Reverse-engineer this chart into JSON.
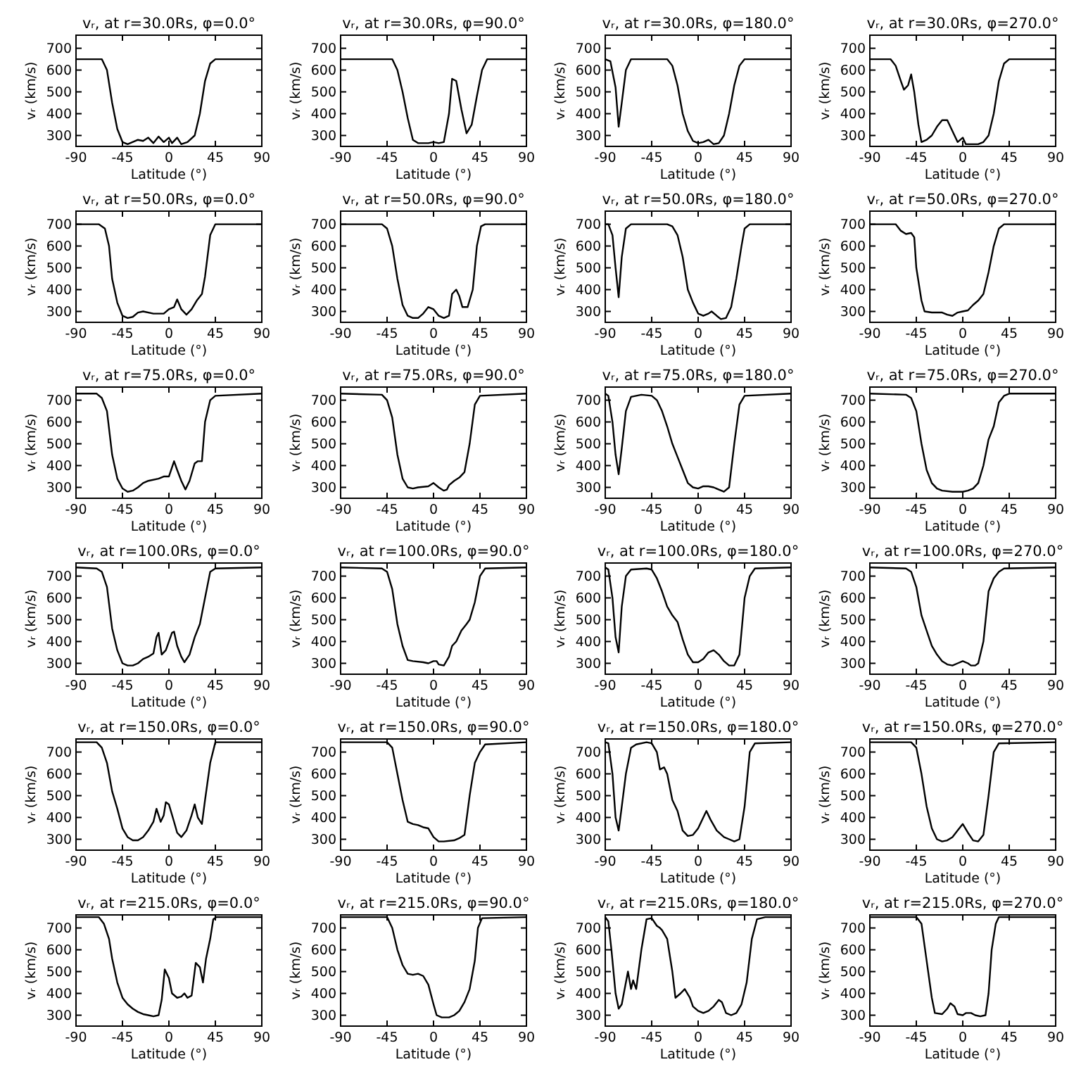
{
  "chart_data": [
    {
      "type": "line",
      "title": "vᵣ, at r=30.0Rs, φ=0.0°",
      "xlabel": "Latitude (°)",
      "ylabel": "vᵣ (km/s)",
      "xlim": [
        -90,
        90
      ],
      "xticks": [
        -90,
        -45,
        0,
        45,
        90
      ],
      "ylim": [
        250,
        760
      ],
      "yticks": [
        300,
        400,
        500,
        600,
        700
      ],
      "color": "#000000",
      "x": [
        -90,
        -65,
        -60,
        -55,
        -50,
        -45,
        -40,
        -30,
        -25,
        -20,
        -15,
        -10,
        -5,
        0,
        3,
        8,
        12,
        18,
        25,
        30,
        35,
        40,
        45,
        90
      ],
      "values": [
        650,
        650,
        600,
        450,
        330,
        270,
        260,
        280,
        275,
        290,
        265,
        295,
        270,
        290,
        265,
        290,
        260,
        270,
        300,
        400,
        550,
        630,
        650,
        650
      ]
    },
    {
      "type": "line",
      "title": "vᵣ, at r=30.0Rs, φ=90.0°",
      "xlabel": "Latitude (°)",
      "ylabel": "vᵣ (km/s)",
      "xlim": [
        -90,
        90
      ],
      "xticks": [
        -90,
        -45,
        0,
        45,
        90
      ],
      "ylim": [
        250,
        760
      ],
      "yticks": [
        300,
        400,
        500,
        600,
        700
      ],
      "color": "#000000",
      "x": [
        -90,
        -40,
        -35,
        -30,
        -25,
        -20,
        -15,
        -5,
        0,
        5,
        10,
        15,
        18,
        22,
        27,
        32,
        37,
        42,
        47,
        52,
        90
      ],
      "values": [
        650,
        650,
        600,
        500,
        380,
        280,
        265,
        265,
        270,
        265,
        270,
        400,
        560,
        550,
        420,
        310,
        350,
        480,
        600,
        650,
        650
      ]
    },
    {
      "type": "line",
      "title": "vᵣ, at r=30.0Rs, φ=180.0°",
      "xlabel": "Latitude (°)",
      "ylabel": "vᵣ (km/s)",
      "xlim": [
        -90,
        90
      ],
      "xticks": [
        -90,
        -45,
        0,
        45,
        90
      ],
      "ylim": [
        250,
        760
      ],
      "yticks": [
        300,
        400,
        500,
        600,
        700
      ],
      "color": "#000000",
      "x": [
        -90,
        -85,
        -80,
        -77,
        -74,
        -70,
        -65,
        -30,
        -25,
        -20,
        -15,
        -10,
        -5,
        0,
        5,
        10,
        15,
        20,
        25,
        30,
        35,
        40,
        45,
        90
      ],
      "values": [
        650,
        640,
        520,
        340,
        450,
        600,
        650,
        650,
        620,
        530,
        400,
        320,
        275,
        265,
        270,
        280,
        260,
        265,
        300,
        400,
        530,
        620,
        650,
        650
      ]
    },
    {
      "type": "line",
      "title": "vᵣ, at r=30.0Rs, φ=270.0°",
      "xlabel": "Latitude (°)",
      "ylabel": "vᵣ (km/s)",
      "xlim": [
        -90,
        90
      ],
      "xticks": [
        -90,
        -45,
        0,
        45,
        90
      ],
      "ylim": [
        250,
        760
      ],
      "yticks": [
        300,
        400,
        500,
        600,
        700
      ],
      "color": "#000000",
      "x": [
        -90,
        -70,
        -65,
        -60,
        -57,
        -53,
        -50,
        -47,
        -43,
        -40,
        -35,
        -30,
        -25,
        -20,
        -15,
        -10,
        -5,
        0,
        3,
        8,
        15,
        20,
        25,
        30,
        35,
        40,
        45,
        90
      ],
      "values": [
        650,
        650,
        620,
        550,
        510,
        530,
        580,
        500,
        350,
        270,
        280,
        300,
        340,
        370,
        370,
        320,
        270,
        290,
        260,
        260,
        260,
        270,
        300,
        400,
        550,
        630,
        650,
        650
      ]
    },
    {
      "type": "line",
      "title": "vᵣ, at r=50.0Rs, φ=0.0°",
      "xlabel": "Latitude (°)",
      "ylabel": "vᵣ (km/s)",
      "xlim": [
        -90,
        90
      ],
      "xticks": [
        -90,
        -45,
        0,
        45,
        90
      ],
      "ylim": [
        250,
        760
      ],
      "yticks": [
        300,
        400,
        500,
        600,
        700
      ],
      "color": "#000000",
      "x": [
        -90,
        -68,
        -62,
        -58,
        -55,
        -50,
        -45,
        -40,
        -35,
        -30,
        -25,
        -15,
        -5,
        0,
        5,
        8,
        12,
        17,
        22,
        27,
        32,
        35,
        40,
        45,
        90
      ],
      "values": [
        700,
        700,
        680,
        600,
        450,
        340,
        280,
        270,
        275,
        295,
        300,
        290,
        290,
        310,
        320,
        355,
        310,
        285,
        310,
        350,
        380,
        460,
        650,
        700,
        700
      ]
    },
    {
      "type": "line",
      "title": "vᵣ, at r=50.0Rs, φ=90.0°",
      "xlabel": "Latitude (°)",
      "ylabel": "vᵣ (km/s)",
      "xlim": [
        -90,
        90
      ],
      "xticks": [
        -90,
        -45,
        0,
        45,
        90
      ],
      "ylim": [
        250,
        760
      ],
      "yticks": [
        300,
        400,
        500,
        600,
        700
      ],
      "color": "#000000",
      "x": [
        -90,
        -50,
        -45,
        -40,
        -35,
        -30,
        -25,
        -20,
        -15,
        -10,
        -5,
        0,
        5,
        10,
        15,
        18,
        22,
        25,
        28,
        33,
        38,
        42,
        46,
        50,
        90
      ],
      "values": [
        700,
        700,
        680,
        600,
        450,
        330,
        280,
        270,
        270,
        290,
        320,
        310,
        280,
        270,
        280,
        380,
        400,
        370,
        320,
        320,
        400,
        600,
        690,
        700,
        700
      ]
    },
    {
      "type": "line",
      "title": "vᵣ, at r=50.0Rs, φ=180.0°",
      "xlabel": "Latitude (°)",
      "ylabel": "vᵣ (km/s)",
      "xlim": [
        -90,
        90
      ],
      "xticks": [
        -90,
        -45,
        0,
        45,
        90
      ],
      "ylim": [
        250,
        760
      ],
      "yticks": [
        300,
        400,
        500,
        600,
        700
      ],
      "color": "#000000",
      "x": [
        -90,
        -87,
        -83,
        -80,
        -77,
        -74,
        -70,
        -65,
        -30,
        -25,
        -20,
        -15,
        -10,
        -5,
        0,
        5,
        10,
        13,
        18,
        22,
        27,
        32,
        37,
        42,
        45,
        50,
        90
      ],
      "values": [
        700,
        700,
        650,
        500,
        365,
        550,
        680,
        700,
        700,
        690,
        650,
        550,
        400,
        340,
        290,
        280,
        290,
        300,
        280,
        265,
        270,
        320,
        450,
        600,
        680,
        700,
        700
      ]
    },
    {
      "type": "line",
      "title": "vᵣ, at r=50.0Rs, φ=270.0°",
      "xlabel": "Latitude (°)",
      "ylabel": "vᵣ (km/s)",
      "xlim": [
        -90,
        90
      ],
      "xticks": [
        -90,
        -45,
        0,
        45,
        90
      ],
      "ylim": [
        250,
        760
      ],
      "yticks": [
        300,
        400,
        500,
        600,
        700
      ],
      "color": "#000000",
      "x": [
        -90,
        -65,
        -60,
        -55,
        -50,
        -47,
        -45,
        -40,
        -37,
        -30,
        -20,
        -15,
        -10,
        -5,
        0,
        5,
        10,
        15,
        20,
        25,
        30,
        35,
        40,
        90
      ],
      "values": [
        700,
        700,
        670,
        655,
        660,
        640,
        500,
        350,
        300,
        295,
        295,
        285,
        280,
        295,
        300,
        305,
        330,
        350,
        380,
        480,
        600,
        680,
        700,
        700
      ]
    },
    {
      "type": "line",
      "title": "vᵣ, at r=75.0Rs, φ=0.0°",
      "xlabel": "Latitude (°)",
      "ylabel": "vᵣ (km/s)",
      "xlim": [
        -90,
        90
      ],
      "xticks": [
        -90,
        -45,
        0,
        45,
        90
      ],
      "ylim": [
        250,
        760
      ],
      "yticks": [
        300,
        400,
        500,
        600,
        700
      ],
      "color": "#000000",
      "x": [
        -90,
        -70,
        -65,
        -60,
        -55,
        -50,
        -45,
        -40,
        -35,
        -30,
        -25,
        -20,
        -10,
        -5,
        0,
        5,
        8,
        12,
        16,
        20,
        25,
        28,
        32,
        35,
        40,
        45,
        90
      ],
      "values": [
        730,
        730,
        710,
        650,
        450,
        340,
        295,
        280,
        285,
        300,
        320,
        330,
        340,
        350,
        350,
        420,
        380,
        330,
        290,
        330,
        410,
        420,
        420,
        600,
        700,
        720,
        730
      ]
    },
    {
      "type": "line",
      "title": "vᵣ, at r=75.0Rs, φ=90.0°",
      "xlabel": "Latitude (°)",
      "ylabel": "vᵣ (km/s)",
      "xlim": [
        -90,
        90
      ],
      "xticks": [
        -90,
        -45,
        0,
        45,
        90
      ],
      "ylim": [
        250,
        760
      ],
      "yticks": [
        300,
        400,
        500,
        600,
        700
      ],
      "color": "#000000",
      "x": [
        -90,
        -50,
        -45,
        -40,
        -35,
        -30,
        -25,
        -20,
        -15,
        -5,
        0,
        5,
        10,
        13,
        15,
        20,
        25,
        30,
        35,
        40,
        45,
        90
      ],
      "values": [
        730,
        725,
        700,
        620,
        450,
        340,
        300,
        295,
        300,
        305,
        320,
        300,
        285,
        290,
        310,
        330,
        345,
        370,
        500,
        680,
        720,
        730
      ]
    },
    {
      "type": "line",
      "title": "vᵣ, at r=75.0Rs, φ=180.0°",
      "xlabel": "Latitude (°)",
      "ylabel": "vᵣ (km/s)",
      "xlim": [
        -90,
        90
      ],
      "xticks": [
        -90,
        -45,
        0,
        45,
        90
      ],
      "ylim": [
        250,
        760
      ],
      "yticks": [
        300,
        400,
        500,
        600,
        700
      ],
      "color": "#000000",
      "x": [
        -90,
        -87,
        -83,
        -80,
        -77,
        -74,
        -70,
        -65,
        -55,
        -45,
        -40,
        -35,
        -30,
        -25,
        -20,
        -15,
        -10,
        -5,
        0,
        5,
        10,
        15,
        20,
        25,
        30,
        35,
        40,
        45,
        90
      ],
      "values": [
        730,
        720,
        600,
        450,
        360,
        480,
        650,
        715,
        725,
        720,
        700,
        650,
        580,
        500,
        440,
        380,
        320,
        300,
        295,
        305,
        305,
        300,
        290,
        280,
        300,
        500,
        680,
        720,
        730
      ]
    },
    {
      "type": "line",
      "title": "vᵣ, at r=75.0Rs, φ=270.0°",
      "xlabel": "Latitude (°)",
      "ylabel": "vᵣ (km/s)",
      "xlim": [
        -90,
        90
      ],
      "xticks": [
        -90,
        -45,
        0,
        45,
        90
      ],
      "ylim": [
        250,
        760
      ],
      "yticks": [
        300,
        400,
        500,
        600,
        700
      ],
      "color": "#000000",
      "x": [
        -90,
        -55,
        -50,
        -45,
        -40,
        -35,
        -30,
        -25,
        -20,
        -10,
        -5,
        0,
        5,
        10,
        15,
        20,
        25,
        30,
        35,
        40,
        45,
        90
      ],
      "values": [
        730,
        725,
        710,
        650,
        500,
        380,
        320,
        295,
        285,
        280,
        280,
        280,
        285,
        295,
        320,
        400,
        520,
        580,
        690,
        720,
        730,
        730
      ]
    },
    {
      "type": "line",
      "title": "vᵣ, at r=100.0Rs, φ=0.0°",
      "xlabel": "Latitude (°)",
      "ylabel": "vᵣ (km/s)",
      "xlim": [
        -90,
        90
      ],
      "xticks": [
        -90,
        -45,
        0,
        45,
        90
      ],
      "ylim": [
        250,
        760
      ],
      "yticks": [
        300,
        400,
        500,
        600,
        700
      ],
      "color": "#000000",
      "x": [
        -90,
        -70,
        -65,
        -60,
        -55,
        -50,
        -45,
        -40,
        -35,
        -30,
        -25,
        -20,
        -15,
        -12,
        -10,
        -7,
        -3,
        0,
        3,
        5,
        8,
        12,
        15,
        20,
        25,
        30,
        35,
        40,
        45,
        90
      ],
      "values": [
        740,
        735,
        720,
        650,
        460,
        360,
        300,
        290,
        290,
        300,
        320,
        330,
        345,
        420,
        440,
        340,
        360,
        400,
        440,
        445,
        380,
        330,
        305,
        340,
        420,
        480,
        600,
        720,
        735,
        740
      ]
    },
    {
      "type": "line",
      "title": "vᵣ, at r=100.0Rs, φ=90.0°",
      "xlabel": "Latitude (°)",
      "ylabel": "vᵣ (km/s)",
      "xlim": [
        -90,
        90
      ],
      "xticks": [
        -90,
        -45,
        0,
        45,
        90
      ],
      "ylim": [
        250,
        760
      ],
      "yticks": [
        300,
        400,
        500,
        600,
        700
      ],
      "color": "#000000",
      "x": [
        -90,
        -50,
        -45,
        -40,
        -35,
        -30,
        -25,
        -20,
        -10,
        -5,
        0,
        3,
        5,
        10,
        15,
        18,
        22,
        27,
        32,
        35,
        40,
        45,
        50,
        90
      ],
      "values": [
        740,
        735,
        720,
        640,
        480,
        380,
        315,
        310,
        305,
        300,
        310,
        310,
        295,
        290,
        330,
        380,
        400,
        450,
        480,
        500,
        580,
        700,
        735,
        740
      ]
    },
    {
      "type": "line",
      "title": "vᵣ, at r=100.0Rs, φ=180.0°",
      "xlabel": "Latitude (°)",
      "ylabel": "vᵣ (km/s)",
      "xlim": [
        -90,
        90
      ],
      "xticks": [
        -90,
        -45,
        0,
        45,
        90
      ],
      "ylim": [
        250,
        760
      ],
      "yticks": [
        300,
        400,
        500,
        600,
        700
      ],
      "color": "#000000",
      "x": [
        -90,
        -87,
        -83,
        -80,
        -77,
        -74,
        -70,
        -65,
        -50,
        -45,
        -40,
        -35,
        -30,
        -25,
        -20,
        -15,
        -10,
        -5,
        0,
        5,
        10,
        15,
        20,
        25,
        30,
        35,
        40,
        45,
        50,
        55,
        90
      ],
      "values": [
        740,
        730,
        600,
        420,
        350,
        560,
        700,
        730,
        735,
        730,
        690,
        630,
        560,
        520,
        490,
        410,
        340,
        305,
        305,
        320,
        350,
        360,
        340,
        310,
        290,
        290,
        340,
        600,
        700,
        735,
        740
      ]
    },
    {
      "type": "line",
      "title": "vᵣ, at r=100.0Rs, φ=270.0°",
      "xlabel": "Latitude (°)",
      "ylabel": "vᵣ (km/s)",
      "xlim": [
        -90,
        90
      ],
      "xticks": [
        -90,
        -45,
        0,
        45,
        90
      ],
      "ylim": [
        250,
        760
      ],
      "yticks": [
        300,
        400,
        500,
        600,
        700
      ],
      "color": "#000000",
      "x": [
        -90,
        -55,
        -50,
        -45,
        -40,
        -35,
        -30,
        -25,
        -20,
        -15,
        -10,
        -5,
        0,
        5,
        8,
        12,
        15,
        20,
        25,
        30,
        35,
        40,
        90
      ],
      "values": [
        740,
        735,
        720,
        650,
        520,
        450,
        380,
        340,
        310,
        295,
        290,
        300,
        310,
        300,
        290,
        290,
        300,
        400,
        630,
        690,
        720,
        735,
        740
      ]
    },
    {
      "type": "line",
      "title": "vᵣ, at r=150.0Rs, φ=0.0°",
      "xlabel": "Latitude (°)",
      "ylabel": "vᵣ (km/s)",
      "xlim": [
        -90,
        90
      ],
      "xticks": [
        -90,
        -45,
        0,
        45,
        90
      ],
      "ylim": [
        250,
        760
      ],
      "yticks": [
        300,
        400,
        500,
        600,
        700
      ],
      "color": "#000000",
      "x": [
        -90,
        -70,
        -65,
        -60,
        -55,
        -50,
        -45,
        -40,
        -35,
        -30,
        -25,
        -20,
        -15,
        -12,
        -8,
        -5,
        -3,
        0,
        5,
        8,
        12,
        17,
        22,
        25,
        28,
        32,
        35,
        40,
        45,
        90
      ],
      "values": [
        745,
        745,
        720,
        650,
        520,
        440,
        350,
        310,
        295,
        295,
        310,
        340,
        380,
        440,
        380,
        410,
        470,
        460,
        380,
        330,
        310,
        340,
        410,
        460,
        400,
        370,
        480,
        650,
        745,
        745
      ]
    },
    {
      "type": "line",
      "title": "vᵣ, at r=150.0Rs, φ=90.0°",
      "xlabel": "Latitude (°)",
      "ylabel": "vᵣ (km/s)",
      "xlim": [
        -90,
        90
      ],
      "xticks": [
        -90,
        -45,
        0,
        45,
        90
      ],
      "ylim": [
        250,
        760
      ],
      "yticks": [
        300,
        400,
        500,
        600,
        700
      ],
      "color": "#000000",
      "x": [
        -90,
        -45,
        -40,
        -35,
        -30,
        -25,
        -20,
        -15,
        -10,
        -5,
        0,
        5,
        10,
        20,
        25,
        30,
        35,
        40,
        45,
        50,
        90
      ],
      "values": [
        745,
        745,
        720,
        600,
        480,
        380,
        370,
        365,
        355,
        350,
        310,
        290,
        290,
        295,
        305,
        320,
        500,
        650,
        700,
        735,
        745
      ]
    },
    {
      "type": "line",
      "title": "vᵣ, at r=150.0Rs, φ=180.0°",
      "xlabel": "Latitude (°)",
      "ylabel": "vᵣ (km/s)",
      "xlim": [
        -90,
        90
      ],
      "xticks": [
        -90,
        -45,
        0,
        45,
        90
      ],
      "ylim": [
        250,
        760
      ],
      "yticks": [
        300,
        400,
        500,
        600,
        700
      ],
      "color": "#000000",
      "x": [
        -90,
        -87,
        -83,
        -80,
        -77,
        -74,
        -70,
        -65,
        -60,
        -50,
        -45,
        -40,
        -37,
        -33,
        -30,
        -25,
        -20,
        -15,
        -10,
        -5,
        0,
        5,
        8,
        12,
        18,
        25,
        30,
        35,
        40,
        45,
        50,
        55,
        90
      ],
      "values": [
        745,
        740,
        600,
        400,
        340,
        450,
        600,
        720,
        735,
        745,
        740,
        700,
        620,
        630,
        600,
        480,
        430,
        340,
        315,
        320,
        350,
        400,
        430,
        390,
        340,
        310,
        300,
        290,
        300,
        450,
        700,
        740,
        745
      ]
    },
    {
      "type": "line",
      "title": "vᵣ, at r=150.0Rs, φ=270.0°",
      "xlabel": "Latitude (°)",
      "ylabel": "vᵣ (km/s)",
      "xlim": [
        -90,
        90
      ],
      "xticks": [
        -90,
        -45,
        0,
        45,
        90
      ],
      "ylim": [
        250,
        760
      ],
      "yticks": [
        300,
        400,
        500,
        600,
        700
      ],
      "color": "#000000",
      "x": [
        -90,
        -50,
        -45,
        -40,
        -35,
        -30,
        -25,
        -20,
        -15,
        -10,
        -5,
        0,
        5,
        10,
        15,
        20,
        25,
        30,
        35,
        90
      ],
      "values": [
        745,
        745,
        720,
        600,
        450,
        350,
        300,
        290,
        295,
        310,
        340,
        370,
        330,
        295,
        290,
        320,
        500,
        700,
        740,
        745
      ]
    },
    {
      "type": "line",
      "title": "vᵣ, at r=215.0Rs, φ=0.0°",
      "xlabel": "Latitude (°)",
      "ylabel": "vᵣ (km/s)",
      "xlim": [
        -90,
        90
      ],
      "xticks": [
        -90,
        -45,
        0,
        45,
        90
      ],
      "ylim": [
        250,
        760
      ],
      "yticks": [
        300,
        400,
        500,
        600,
        700
      ],
      "color": "#000000",
      "x": [
        -90,
        -68,
        -63,
        -58,
        -55,
        -50,
        -45,
        -40,
        -35,
        -30,
        -25,
        -20,
        -15,
        -10,
        -7,
        -4,
        0,
        3,
        8,
        12,
        15,
        18,
        22,
        26,
        30,
        33,
        36,
        40,
        43,
        46,
        90
      ],
      "values": [
        750,
        750,
        720,
        650,
        560,
        450,
        380,
        350,
        330,
        315,
        305,
        300,
        295,
        300,
        370,
        510,
        470,
        400,
        380,
        385,
        400,
        380,
        390,
        540,
        520,
        450,
        560,
        650,
        740,
        750,
        750
      ]
    },
    {
      "type": "line",
      "title": "vᵣ, at r=215.0Rs, φ=90.0°",
      "xlabel": "Latitude (°)",
      "ylabel": "vᵣ (km/s)",
      "xlim": [
        -90,
        90
      ],
      "xticks": [
        -90,
        -45,
        0,
        45,
        90
      ],
      "ylim": [
        250,
        760
      ],
      "yticks": [
        300,
        400,
        500,
        600,
        700
      ],
      "color": "#000000",
      "x": [
        -90,
        -45,
        -40,
        -35,
        -30,
        -25,
        -20,
        -15,
        -10,
        -5,
        0,
        3,
        8,
        15,
        20,
        25,
        30,
        35,
        40,
        43,
        47,
        90
      ],
      "values": [
        750,
        750,
        700,
        600,
        530,
        490,
        485,
        490,
        480,
        440,
        350,
        300,
        290,
        290,
        300,
        320,
        360,
        420,
        550,
        700,
        745,
        750
      ]
    },
    {
      "type": "line",
      "title": "vᵣ, at r=215.0Rs, φ=180.0°",
      "xlabel": "Latitude (°)",
      "ylabel": "vᵣ (km/s)",
      "xlim": [
        -90,
        90
      ],
      "xticks": [
        -90,
        -45,
        0,
        45,
        90
      ],
      "ylim": [
        250,
        760
      ],
      "yticks": [
        300,
        400,
        500,
        600,
        700
      ],
      "color": "#000000",
      "x": [
        -90,
        -87,
        -84,
        -80,
        -77,
        -74,
        -70,
        -68,
        -65,
        -63,
        -60,
        -55,
        -50,
        -45,
        -40,
        -37,
        -35,
        -30,
        -25,
        -22,
        -17,
        -13,
        -8,
        -5,
        0,
        5,
        10,
        15,
        20,
        23,
        27,
        32,
        37,
        42,
        47,
        52,
        57,
        65,
        90
      ],
      "values": [
        750,
        730,
        600,
        400,
        330,
        350,
        450,
        500,
        420,
        460,
        420,
        600,
        740,
        745,
        710,
        700,
        690,
        650,
        500,
        380,
        400,
        420,
        380,
        340,
        320,
        310,
        320,
        340,
        370,
        360,
        310,
        300,
        310,
        350,
        450,
        650,
        740,
        750,
        750
      ]
    },
    {
      "type": "line",
      "title": "vᵣ, at r=215.0Rs, φ=270.0°",
      "xlabel": "Latitude (°)",
      "ylabel": "vᵣ (km/s)",
      "xlim": [
        -90,
        90
      ],
      "xticks": [
        -90,
        -45,
        0,
        45,
        90
      ],
      "ylim": [
        250,
        760
      ],
      "yticks": [
        300,
        400,
        500,
        600,
        700
      ],
      "color": "#000000",
      "x": [
        -90,
        -45,
        -40,
        -35,
        -30,
        -27,
        -20,
        -15,
        -12,
        -8,
        -5,
        0,
        3,
        8,
        12,
        17,
        22,
        25,
        28,
        32,
        35,
        90
      ],
      "values": [
        750,
        750,
        720,
        550,
        380,
        310,
        305,
        330,
        355,
        340,
        305,
        300,
        310,
        310,
        300,
        295,
        300,
        400,
        600,
        720,
        750,
        750
      ]
    }
  ]
}
